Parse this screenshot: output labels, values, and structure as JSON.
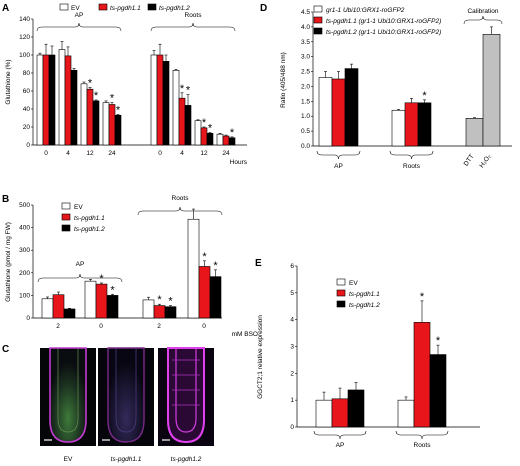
{
  "colors": {
    "ev": "#ffffff",
    "line1": "#e8161b",
    "line2": "#000000",
    "calib": "#c0c0c0",
    "magenta": "#d23ce0",
    "green": "#6a9a55"
  },
  "chart_data": [
    {
      "panel": "A",
      "type": "bar",
      "ylabel": "Glutathione (%)",
      "ylim": [
        0,
        140
      ],
      "yticks": [
        "0",
        "20",
        "40",
        "60",
        "80",
        "100",
        "120",
        "140"
      ],
      "xlabel": "Hours",
      "legend": [
        "EV",
        "ts-pgdh1.1",
        "ts-pgdh1.2"
      ],
      "groups": [
        {
          "label": "AP",
          "categories": [
            "0",
            "4",
            "12",
            "24"
          ],
          "series": [
            {
              "name": "EV",
              "values": [
                100,
                106,
                68,
                47
              ],
              "errors": [
                2,
                9,
                2,
                2
              ]
            },
            {
              "name": "ts-pgdh1.1",
              "values": [
                100,
                99,
                62,
                45
              ],
              "errors": [
                12,
                10,
                2,
                2
              ]
            },
            {
              "name": "ts-pgdh1.2",
              "values": [
                100,
                83,
                49,
                33
              ],
              "errors": [
                10,
                2,
                1,
                1
              ]
            }
          ],
          "stars": [
            [
              false,
              false,
              true,
              true
            ],
            [
              false,
              false,
              true,
              true
            ]
          ]
        },
        {
          "label": "Roots",
          "categories": [
            "0",
            "4",
            "12",
            "24"
          ],
          "series": [
            {
              "name": "EV",
              "values": [
                100,
                83,
                27,
                12
              ],
              "errors": [
                5,
                1,
                1,
                1
              ]
            },
            {
              "name": "ts-pgdh1.1",
              "values": [
                100,
                52,
                19,
                10
              ],
              "errors": [
                12,
                6,
                1,
                1
              ]
            },
            {
              "name": "ts-pgdh1.2",
              "values": [
                93,
                44,
                13,
                8
              ],
              "errors": [
                7,
                12,
                1,
                1
              ]
            }
          ],
          "stars": [
            [
              false,
              true,
              true,
              false
            ],
            [
              false,
              true,
              true,
              true
            ]
          ]
        }
      ]
    },
    {
      "panel": "B",
      "type": "bar",
      "ylabel": "Glutathione (pmol / mg FW)",
      "ylim": [
        0,
        500
      ],
      "yticks": [
        "0",
        "100",
        "200",
        "300",
        "400",
        "500"
      ],
      "xlabel": "mM BSO",
      "legend": [
        "EV",
        "ts-pgdh1.1",
        "ts-pgdh1.2"
      ],
      "groups": [
        {
          "label": "AP",
          "categories": [
            "2",
            "0"
          ],
          "series": [
            {
              "name": "EV",
              "values": [
                85,
                163
              ],
              "errors": [
                8,
                8
              ]
            },
            {
              "name": "ts-pgdh1.1",
              "values": [
                103,
                150
              ],
              "errors": [
                12,
                5
              ]
            },
            {
              "name": "ts-pgdh1.2",
              "values": [
                40,
                100
              ],
              "errors": [
                3,
                5
              ]
            }
          ],
          "stars": [
            [
              false,
              false
            ],
            [
              true,
              true
            ]
          ]
        },
        {
          "label": "Roots",
          "categories": [
            "2",
            "0"
          ],
          "series": [
            {
              "name": "EV",
              "values": [
                80,
                437
              ],
              "errors": [
                12,
                45
              ]
            },
            {
              "name": "ts-pgdh1.1",
              "values": [
                55,
                228
              ],
              "errors": [
                6,
                25
              ]
            },
            {
              "name": "ts-pgdh1.2",
              "values": [
                50,
                183
              ],
              "errors": [
                5,
                30
              ]
            }
          ],
          "stars": [
            [
              true,
              true
            ],
            [
              true,
              true
            ]
          ]
        }
      ]
    },
    {
      "panel": "D",
      "type": "bar",
      "ylabel": "Ratio (405/488 nm)",
      "ylim": [
        0,
        4.5
      ],
      "yticks": [
        "0.0",
        "0.5",
        "1.0",
        "1.5",
        "2.0",
        "2.5",
        "3.0",
        "3.5",
        "4.0",
        "4.5"
      ],
      "legend": [
        "gr1-1 Ubi10:GRX1-roGFP2",
        "ts-pgdh1.1 (gr1-1 Ubi10:GRX1-roGFP2)",
        "ts-pgdh1.2 (gr1-1 Ubi10:GRX1-roGFP2)"
      ],
      "groups": [
        {
          "label": "AP",
          "values": [
            2.3,
            2.25,
            2.6
          ],
          "errors": [
            0.2,
            0.25,
            0.15
          ],
          "stars": [
            false,
            false,
            false
          ]
        },
        {
          "label": "Roots",
          "values": [
            1.2,
            1.45,
            1.45
          ],
          "errors": [
            0.03,
            0.15,
            0.1
          ],
          "stars": [
            false,
            false,
            true
          ]
        }
      ],
      "calibration": {
        "label": "Calibration",
        "categories": [
          "DTT",
          "H₂O₂"
        ],
        "values": [
          0.93,
          3.75
        ],
        "errors": [
          0.02,
          0.25
        ]
      }
    },
    {
      "panel": "E",
      "type": "bar",
      "ylabel": "GGCT2;1 relative expression",
      "ylim": [
        0,
        6
      ],
      "yticks": [
        "0",
        "1",
        "2",
        "3",
        "4",
        "5",
        "6"
      ],
      "legend": [
        "EV",
        "ts-pgdh1.1",
        "ts-pgdh1.2"
      ],
      "groups": [
        {
          "label": "AP",
          "values": [
            1.0,
            1.05,
            1.38
          ],
          "errors": [
            0.3,
            0.4,
            0.28
          ],
          "stars": [
            false,
            false,
            false
          ]
        },
        {
          "label": "Roots",
          "values": [
            1.0,
            3.9,
            2.7
          ],
          "errors": [
            0.12,
            0.8,
            0.35
          ],
          "stars": [
            false,
            true,
            true
          ]
        }
      ]
    }
  ],
  "panel_c": {
    "letter": "C",
    "labels": [
      "EV",
      "ts-pgdh1.1",
      "ts-pgdh1.2"
    ]
  }
}
